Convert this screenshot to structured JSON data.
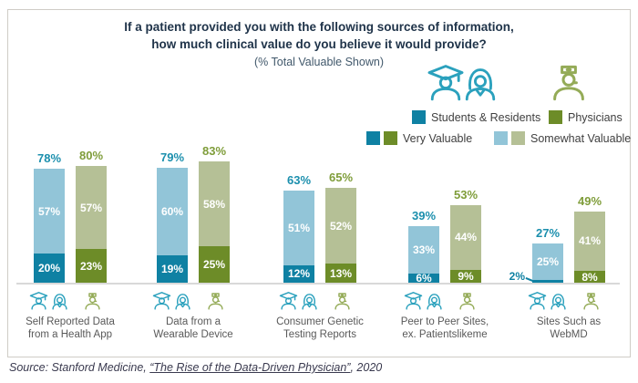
{
  "header": {
    "title_line1": "If a patient provided you with the following sources of information,",
    "title_line2": "how much clinical value do you believe it would provide?",
    "subtitle": "(% Total Valuable Shown)"
  },
  "legend": {
    "cohorts": [
      {
        "label": "Students & Residents",
        "icon": "graduate-and-resident-icons",
        "swatch": "#0f81a3"
      },
      {
        "label": "Physicians",
        "icon": "physician-icon",
        "swatch": "#6d8c28"
      }
    ],
    "levels": [
      {
        "label": "Very Valuable",
        "swatches": [
          "#0f81a3",
          "#6d8c28"
        ]
      },
      {
        "label": "Somewhat Valuable",
        "swatches": [
          "#92c5d8",
          "#b5c096"
        ]
      }
    ]
  },
  "chart_data": {
    "type": "bar",
    "stacked": true,
    "gridlines": false,
    "legend_position": "top-right",
    "value_suffix": "%",
    "ylim": [
      0,
      100
    ],
    "categories": [
      "Self Reported Data\nfrom a Health App",
      "Data from a\nWearable Device",
      "Consumer Genetic\nTesting Reports",
      "Peer to Peer Sites,\nex. Patientslikeme",
      "Sites Such as\nWebMD"
    ],
    "series": [
      {
        "name": "Students & Residents - Very Valuable",
        "color": "#0f81a3",
        "values": [
          20,
          19,
          12,
          6,
          2
        ]
      },
      {
        "name": "Students & Residents - Somewhat Valuable",
        "color": "#92c5d8",
        "values": [
          57,
          60,
          51,
          33,
          25
        ]
      },
      {
        "name": "Physicians - Very Valuable",
        "color": "#6d8c28",
        "values": [
          23,
          25,
          13,
          9,
          8
        ]
      },
      {
        "name": "Physicians - Somewhat Valuable",
        "color": "#b5c096",
        "values": [
          57,
          58,
          52,
          44,
          41
        ]
      }
    ],
    "totals": [
      {
        "name": "Students & Residents - Total Valuable",
        "label_color": "#1b8fad",
        "values": [
          78,
          79,
          63,
          39,
          27
        ]
      },
      {
        "name": "Physicians - Total Valuable",
        "label_color": "#7f9d3a",
        "values": [
          80,
          83,
          65,
          53,
          49
        ]
      }
    ]
  },
  "source": {
    "prefix": "Source: Stanford Medicine, ",
    "link": "“The Rise of the Data-Driven Physician”",
    "suffix": ", 2020"
  },
  "colors": {
    "icon_teal": "#2ba1bd",
    "icon_green": "#94ab57",
    "title": "#20344a",
    "subtitle": "#41586b",
    "category_text": "#595959",
    "legend_text": "#3f3f3f",
    "baseline": "#d9d9d9",
    "border": "#cfccc6",
    "source_text": "#3a3a4f"
  }
}
